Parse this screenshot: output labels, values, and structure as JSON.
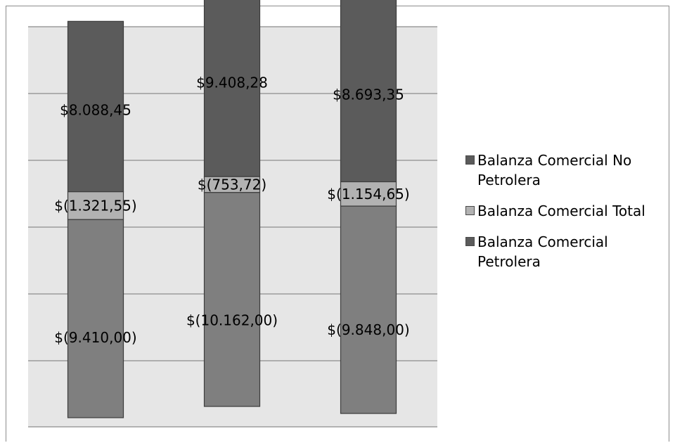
{
  "chart_data": {
    "type": "bar",
    "stacked": true,
    "categories": [
      "",
      "",
      ""
    ],
    "series": [
      {
        "name": "Balanza Comercial No Petrolera",
        "values": [
          -9410.0,
          -10162.0,
          -9848.0
        ],
        "labels": [
          "$(9.410,00)",
          "$(10.162,00)",
          "$(9.848,00)"
        ],
        "color": "#7f7f7f"
      },
      {
        "name": "Balanza Comercial Total",
        "values": [
          -1321.55,
          -753.72,
          -1154.65
        ],
        "labels": [
          "$(1.321,55)",
          "$(753,72)",
          "$(1.154,65)"
        ],
        "color": "#b2b2b2"
      },
      {
        "name": "Balanza Comercial Petrolera",
        "values": [
          8088.45,
          9408.28,
          8693.35
        ],
        "labels": [
          "$8.088,45",
          "$9.408,28",
          "$8.693,35"
        ],
        "color": "#5b5b5b"
      }
    ],
    "grid": true,
    "legend_position": "right",
    "plot_background": "#e6e6e6"
  }
}
